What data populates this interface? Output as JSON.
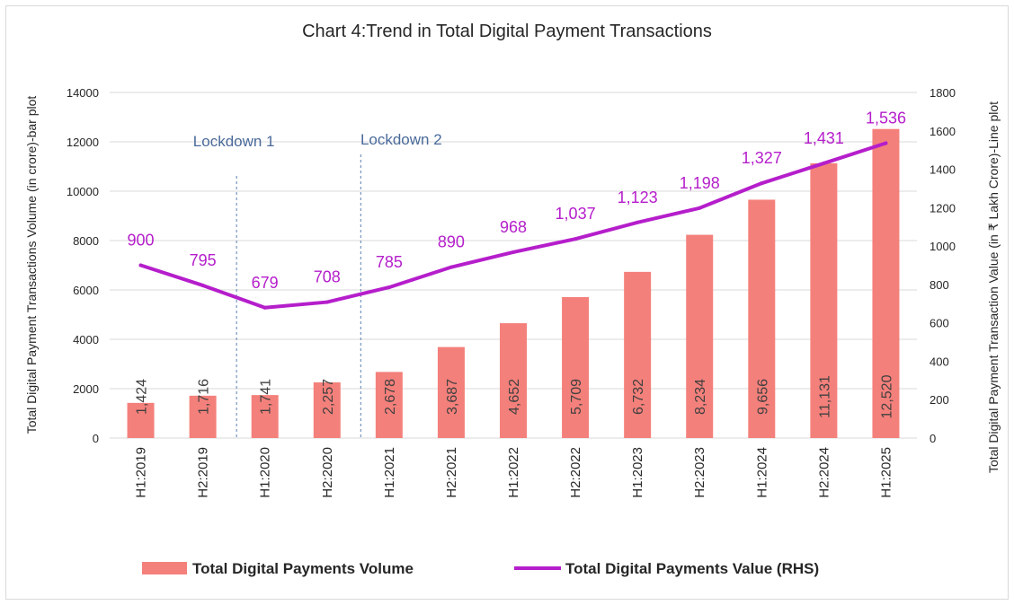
{
  "chart_data": {
    "type": "bar",
    "title": "Chart 4:Trend in Total Digital Payment Transactions",
    "categories": [
      "H1:2019",
      "H2:2019",
      "H1:2020",
      "H2:2020",
      "H1:2021",
      "H2:2021",
      "H1:2022",
      "H2:2022",
      "H1:2023",
      "H2:2023",
      "H1:2024",
      "H2:2024",
      "H1:2025"
    ],
    "ylabel": "Total Digital Payment Transactions Volume (in crore)-bar plot",
    "y2label": "Total Digital Payment Transaction  Value (in ₹ Lakh Crore)-Line plot",
    "ylim": [
      0,
      14000
    ],
    "y2lim": [
      0,
      1800
    ],
    "yticks": [
      "0",
      "2000",
      "4000",
      "6000",
      "8000",
      "10000",
      "12000",
      "14000"
    ],
    "y2ticks": [
      "0",
      "200",
      "400",
      "600",
      "800",
      "1000",
      "1200",
      "1400",
      "1600",
      "1800"
    ],
    "grid": true,
    "legend_position": "bottom",
    "series": [
      {
        "name": "Total Digital Payments  Volume",
        "type": "bar",
        "axis": "left",
        "color": "#f4807b",
        "values": [
          1424,
          1716,
          1741,
          2257,
          2678,
          3687,
          4652,
          5709,
          6732,
          8234,
          9656,
          11131,
          12520
        ],
        "labels": [
          "1,424",
          "1,716",
          "1,741",
          "2,257",
          "2,678",
          "3,687",
          "4,652",
          "5,709",
          "6,732",
          "8,234",
          "9,656",
          "11,131",
          "12,520"
        ]
      },
      {
        "name": "Total Digital Payments   Value (RHS)",
        "type": "line",
        "axis": "right",
        "color": "#b51ecb",
        "values": [
          900,
          795,
          679,
          708,
          785,
          890,
          968,
          1037,
          1123,
          1198,
          1327,
          1431,
          1536
        ],
        "labels": [
          "900",
          "795",
          "679",
          "708",
          "785",
          "890",
          "968",
          "1,037",
          "1,123",
          "1,198",
          "1,327",
          "1,431",
          "1,536"
        ]
      }
    ],
    "annotations": [
      {
        "text": "Lockdown 1",
        "category": "H1:2020"
      },
      {
        "text": "Lockdown 2",
        "category": "H1:2021"
      }
    ]
  }
}
